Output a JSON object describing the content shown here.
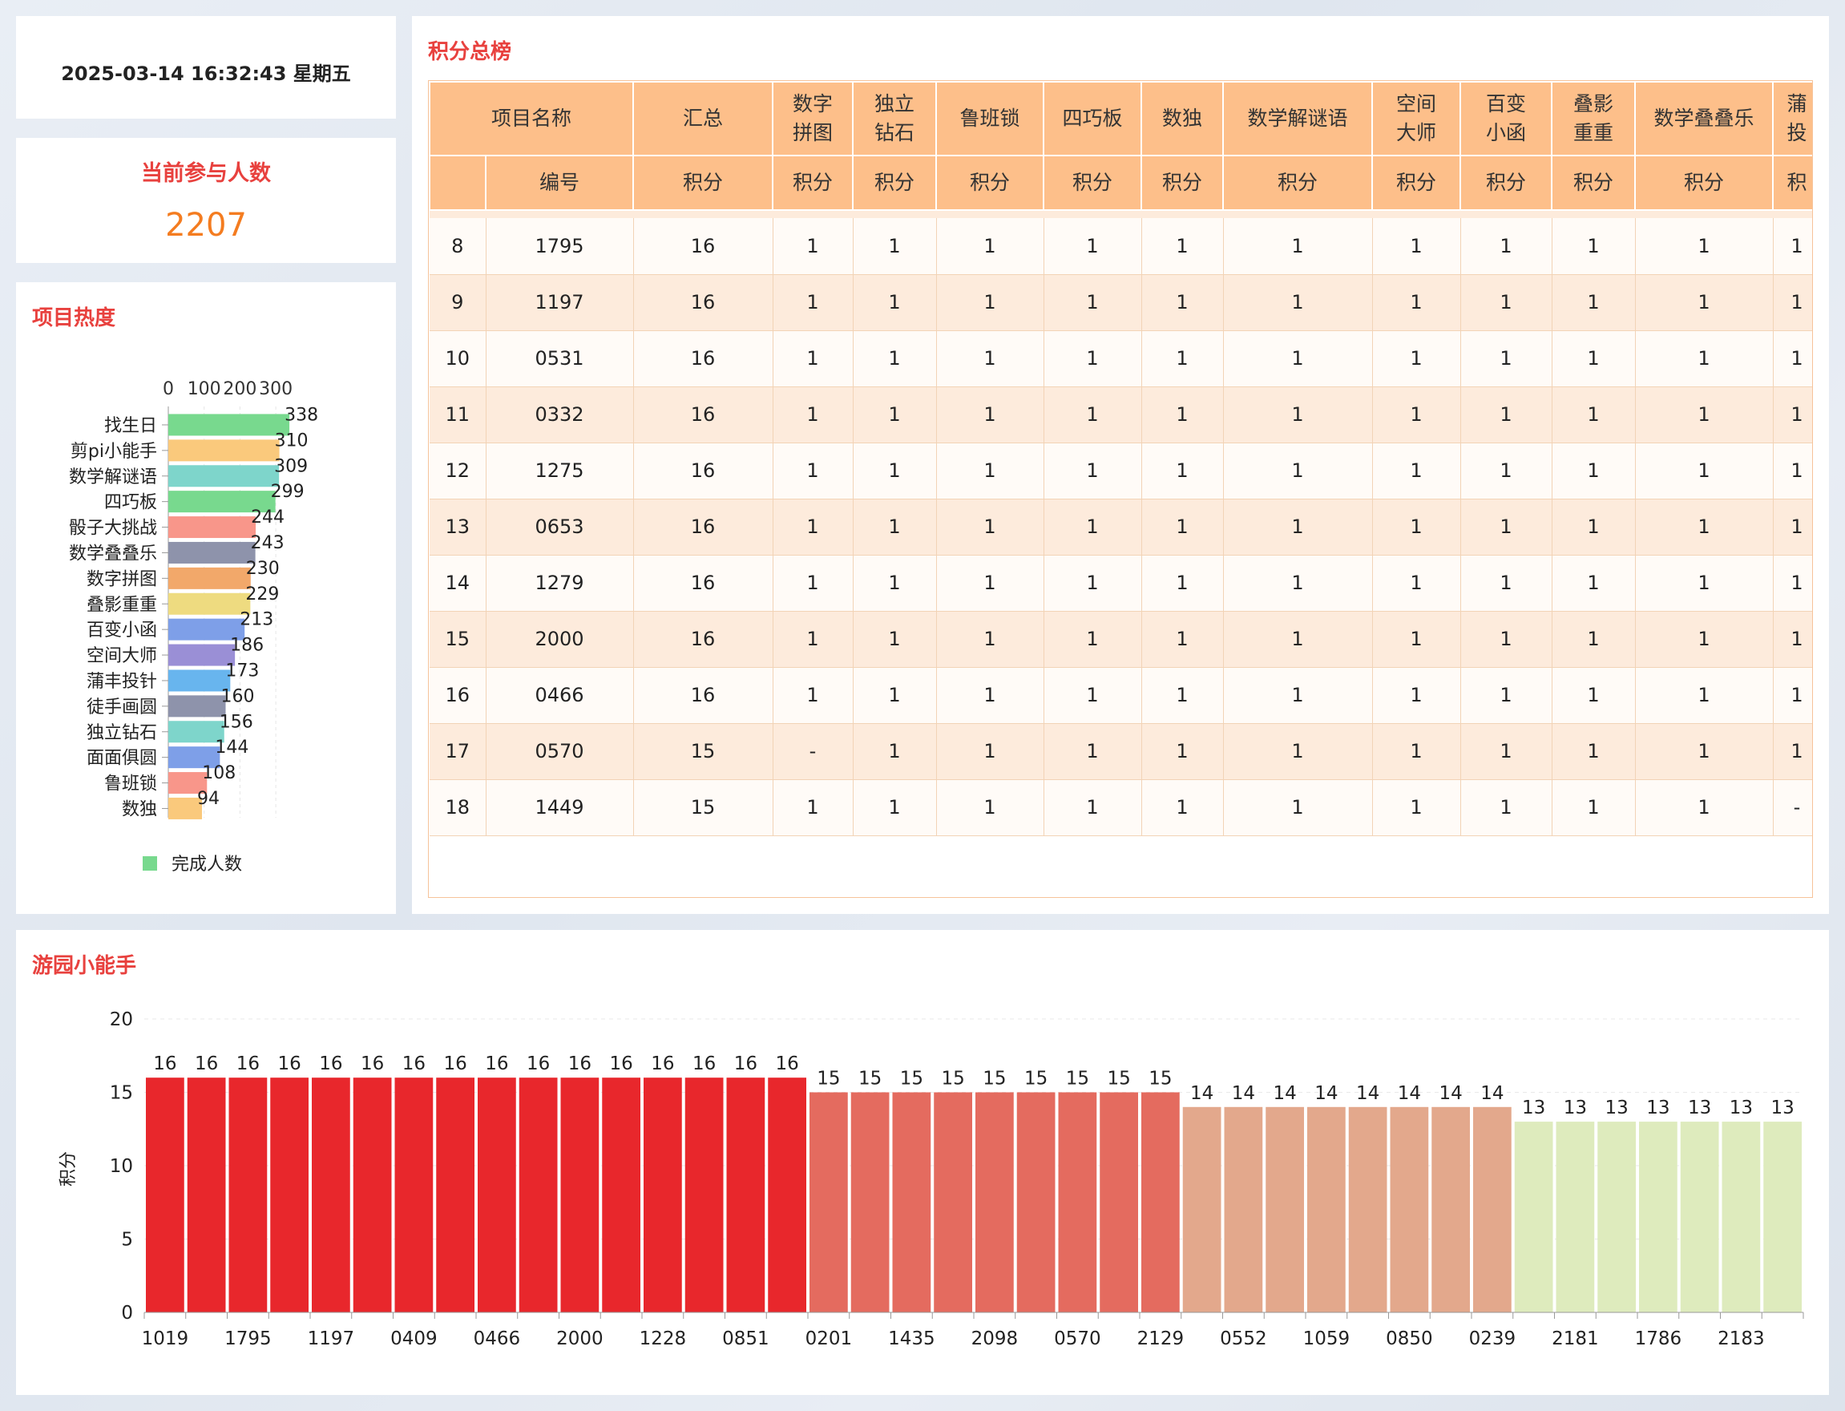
{
  "datetime": "2025-03-14 16:32:43 星期五",
  "participants": {
    "label": "当前参与人数",
    "value": "2207"
  },
  "heat": {
    "title": "项目热度",
    "legend": "完成人数",
    "chart_data": {
      "type": "bar",
      "orientation": "horizontal",
      "categories": [
        "找生日",
        "剪pi小能手",
        "数学解谜语",
        "四巧板",
        "骰子大挑战",
        "数学叠叠乐",
        "数字拼图",
        "叠影重重",
        "百变小函",
        "空间大师",
        "蒲丰投针",
        "徒手画圆",
        "独立钻石",
        "面面俱圆",
        "鲁班锁",
        "数独"
      ],
      "values": [
        338,
        310,
        309,
        299,
        244,
        243,
        230,
        229,
        213,
        186,
        173,
        160,
        156,
        144,
        108,
        94
      ],
      "colors": [
        "#78d98e",
        "#fac97c",
        "#7ed5cb",
        "#78d98e",
        "#f8968a",
        "#8e93ab",
        "#f2a86a",
        "#eedb80",
        "#7e9fe8",
        "#9a8fd6",
        "#68b5ee",
        "#8e93ab",
        "#7ed5cb",
        "#7e9fe8",
        "#f8968a",
        "#fac97c"
      ],
      "xticks": [
        0,
        100,
        200,
        300
      ],
      "xlim": [
        0,
        338
      ],
      "series": [
        {
          "name": "完成人数"
        }
      ],
      "legend_position": "bottom"
    }
  },
  "ranking": {
    "title": "积分总榜",
    "header1": [
      "项目名称",
      "汇总",
      "数字拼图",
      "独立钻石",
      "鲁班锁",
      "四巧板",
      "数独",
      "数学解谜语",
      "空间大师",
      "百变小函",
      "叠影重重",
      "数学叠叠乐",
      "蒲丰投针"
    ],
    "header1_lines": [
      [
        "项目名称"
      ],
      [
        "汇总"
      ],
      [
        "数字",
        "拼图"
      ],
      [
        "独立",
        "钻石"
      ],
      [
        "鲁班锁"
      ],
      [
        "四巧板"
      ],
      [
        "数独"
      ],
      [
        "数学解谜语"
      ],
      [
        "空间",
        "大师"
      ],
      [
        "百变",
        "小函"
      ],
      [
        "叠影",
        "重重"
      ],
      [
        "数学叠叠乐"
      ],
      [
        "蒲",
        "投"
      ]
    ],
    "header2": [
      "编号",
      "积分",
      "积分",
      "积分",
      "积分",
      "积分",
      "积分",
      "积分",
      "积分",
      "积分",
      "积分",
      "积分",
      "积"
    ],
    "rows": [
      [
        "8",
        "1795",
        "16",
        "1",
        "1",
        "1",
        "1",
        "1",
        "1",
        "1",
        "1",
        "1",
        "1",
        "1"
      ],
      [
        "9",
        "1197",
        "16",
        "1",
        "1",
        "1",
        "1",
        "1",
        "1",
        "1",
        "1",
        "1",
        "1",
        "1"
      ],
      [
        "10",
        "0531",
        "16",
        "1",
        "1",
        "1",
        "1",
        "1",
        "1",
        "1",
        "1",
        "1",
        "1",
        "1"
      ],
      [
        "11",
        "0332",
        "16",
        "1",
        "1",
        "1",
        "1",
        "1",
        "1",
        "1",
        "1",
        "1",
        "1",
        "1"
      ],
      [
        "12",
        "1275",
        "16",
        "1",
        "1",
        "1",
        "1",
        "1",
        "1",
        "1",
        "1",
        "1",
        "1",
        "1"
      ],
      [
        "13",
        "0653",
        "16",
        "1",
        "1",
        "1",
        "1",
        "1",
        "1",
        "1",
        "1",
        "1",
        "1",
        "1"
      ],
      [
        "14",
        "1279",
        "16",
        "1",
        "1",
        "1",
        "1",
        "1",
        "1",
        "1",
        "1",
        "1",
        "1",
        "1"
      ],
      [
        "15",
        "2000",
        "16",
        "1",
        "1",
        "1",
        "1",
        "1",
        "1",
        "1",
        "1",
        "1",
        "1",
        "1"
      ],
      [
        "16",
        "0466",
        "16",
        "1",
        "1",
        "1",
        "1",
        "1",
        "1",
        "1",
        "1",
        "1",
        "1",
        "1"
      ],
      [
        "17",
        "0570",
        "15",
        "-",
        "1",
        "1",
        "1",
        "1",
        "1",
        "1",
        "1",
        "1",
        "1",
        "1"
      ],
      [
        "18",
        "1449",
        "15",
        "1",
        "1",
        "1",
        "1",
        "1",
        "1",
        "1",
        "1",
        "1",
        "1",
        "-"
      ]
    ]
  },
  "bottom": {
    "title": "游园小能手",
    "chart_data": {
      "type": "bar",
      "ylabel": "积分",
      "yticks": [
        0,
        5,
        10,
        15,
        20
      ],
      "ylim": [
        0,
        20
      ],
      "values": [
        16,
        16,
        16,
        16,
        16,
        16,
        16,
        16,
        16,
        16,
        16,
        16,
        16,
        16,
        16,
        16,
        15,
        15,
        15,
        15,
        15,
        15,
        15,
        15,
        15,
        14,
        14,
        14,
        14,
        14,
        14,
        14,
        14,
        13,
        13,
        13,
        13,
        13,
        13,
        13
      ],
      "xtick_labels": [
        "1019",
        "1795",
        "1197",
        "0409",
        "0466",
        "2000",
        "1228",
        "0851",
        "0201",
        "1435",
        "2098",
        "0570",
        "2129",
        "0552",
        "1059",
        "0850",
        "0239",
        "2181",
        "1786",
        "2183"
      ],
      "color_by_value": {
        "16": "#e8272c",
        "15": "#e46b5f",
        "14": "#e3a88c",
        "13": "#deebbd"
      }
    }
  }
}
